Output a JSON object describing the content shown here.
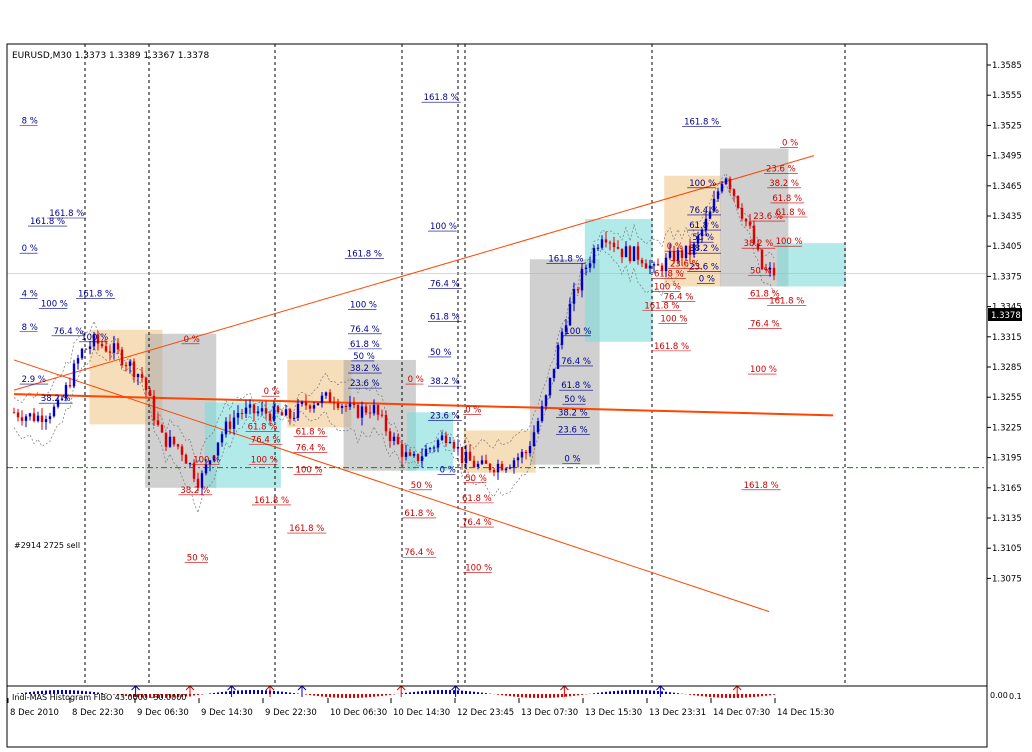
{
  "header": {
    "symbol_line": "EURUSD,M30  1.3373 1.3389 1.3367 1.3378"
  },
  "price_tag": "1.3378",
  "order_label": "#2914 2725 sell",
  "indicator_label": "Indi-MAS Histogram FIBO 43.0000 -30.0000",
  "indicator_axis_value": "0.00",
  "indicator_axis_value2": "0.1",
  "colors": {
    "bull": "#0000cc",
    "bear": "#e00000",
    "trend": "#ff4500",
    "fib_blue": "#00008b",
    "fib_red": "#cc0000",
    "box_gray": "#a9a9a9",
    "box_cyan": "#7fdcdc",
    "box_tan": "#f4d3a3"
  },
  "chart_data": {
    "type": "candlestick",
    "symbol": "EURUSD",
    "timeframe": "M30",
    "ohlc_last": {
      "open": 1.3373,
      "high": 1.3389,
      "low": 1.3367,
      "close": 1.3378
    },
    "ylim": [
      1.3045,
      1.36
    ],
    "y_ticks": [
      "1.3585",
      "1.3555",
      "1.3525",
      "1.3495",
      "1.3465",
      "1.3435",
      "1.3405",
      "1.3375",
      "1.3345",
      "1.3315",
      "1.3285",
      "1.3255",
      "1.3225",
      "1.3195",
      "1.3165",
      "1.3135",
      "1.3105",
      "1.3075"
    ],
    "x_ticks": [
      "8 Dec 2010",
      "8 Dec 22:30",
      "9 Dec 06:30",
      "9 Dec 14:30",
      "9 Dec 22:30",
      "10 Dec 06:30",
      "10 Dec 14:30",
      "12 Dec 23:45",
      "13 Dec 07:30",
      "13 Dec 15:30",
      "13 Dec 23:31",
      "14 Dec 07:30",
      "14 Dec 15:30"
    ],
    "session_separators": [
      1,
      4,
      7,
      10,
      11
    ],
    "order_level": 1.3185,
    "trendlines": [
      {
        "from": [
          0,
          1.3262
        ],
        "to": [
          12.5,
          1.3495
        ],
        "width": 1
      },
      {
        "from": [
          0,
          1.3258
        ],
        "to": [
          12.8,
          1.3237
        ],
        "width": 2
      },
      {
        "from": [
          0,
          1.3292
        ],
        "to": [
          11.8,
          1.3042
        ],
        "width": 1
      }
    ],
    "candles_anchor_close": [
      [
        0,
        1.324
      ],
      [
        0.35,
        1.3235
      ],
      [
        0.7,
        1.3245
      ],
      [
        1.05,
        1.33
      ],
      [
        1.25,
        1.331
      ],
      [
        1.6,
        1.33
      ],
      [
        2.0,
        1.3275
      ],
      [
        2.3,
        1.3215
      ],
      [
        2.6,
        1.3205
      ],
      [
        2.9,
        1.317
      ],
      [
        3.2,
        1.3215
      ],
      [
        3.5,
        1.324
      ],
      [
        3.9,
        1.324
      ],
      [
        4.3,
        1.3235
      ],
      [
        4.6,
        1.325
      ],
      [
        5.0,
        1.3255
      ],
      [
        5.3,
        1.324
      ],
      [
        5.6,
        1.3245
      ],
      [
        5.9,
        1.3215
      ],
      [
        6.2,
        1.319
      ],
      [
        6.5,
        1.3205
      ],
      [
        6.8,
        1.322
      ],
      [
        7.0,
        1.3195
      ],
      [
        7.3,
        1.3185
      ],
      [
        7.7,
        1.319
      ],
      [
        8.0,
        1.32
      ],
      [
        8.3,
        1.325
      ],
      [
        8.6,
        1.333
      ],
      [
        8.9,
        1.338
      ],
      [
        9.2,
        1.342
      ],
      [
        9.5,
        1.34
      ],
      [
        9.8,
        1.3395
      ],
      [
        10.0,
        1.338
      ],
      [
        10.3,
        1.3395
      ],
      [
        10.6,
        1.34
      ],
      [
        10.9,
        1.344
      ],
      [
        11.1,
        1.348
      ],
      [
        11.3,
        1.345
      ],
      [
        11.5,
        1.342
      ],
      [
        11.7,
        1.338
      ],
      [
        11.9,
        1.3378
      ]
    ],
    "zones": [
      {
        "color": "tan",
        "x": [
          1.18,
          2.32
        ],
        "y": [
          1.3228,
          1.3322
        ]
      },
      {
        "color": "gray",
        "x": [
          2.05,
          3.16
        ],
        "y": [
          1.3165,
          1.3318
        ]
      },
      {
        "color": "cyan",
        "x": [
          2.98,
          4.17
        ],
        "y": [
          1.3165,
          1.325
        ]
      },
      {
        "color": "tan",
        "x": [
          4.27,
          5.27
        ],
        "y": [
          1.3225,
          1.3292
        ]
      },
      {
        "color": "gray",
        "x": [
          5.15,
          6.28
        ],
        "y": [
          1.3182,
          1.3292
        ]
      },
      {
        "color": "cyan",
        "x": [
          6.14,
          6.86
        ],
        "y": [
          1.3182,
          1.324
        ]
      },
      {
        "color": "tan",
        "x": [
          7.03,
          8.15
        ],
        "y": [
          1.318,
          1.3222
        ]
      },
      {
        "color": "gray",
        "x": [
          8.06,
          9.15
        ],
        "y": [
          1.3188,
          1.3392
        ]
      },
      {
        "color": "cyan",
        "x": [
          8.92,
          9.98
        ],
        "y": [
          1.331,
          1.3432
        ]
      },
      {
        "color": "tan",
        "x": [
          10.16,
          11.04
        ],
        "y": [
          1.3365,
          1.3475
        ]
      },
      {
        "color": "gray",
        "x": [
          11.03,
          12.1
        ],
        "y": [
          1.3365,
          1.3502
        ]
      },
      {
        "color": "cyan",
        "x": [
          11.92,
          13.0
        ],
        "y": [
          1.3365,
          1.3408
        ]
      }
    ],
    "fib_labels": [
      {
        "text": "161.8 %",
        "x": 6.4,
        "y": 1.355,
        "c": "blue"
      },
      {
        "text": "8 %",
        "x": 0.12,
        "y": 1.3527,
        "c": "blue"
      },
      {
        "text": "161.8 %",
        "x": 10.47,
        "y": 1.3526,
        "c": "blue"
      },
      {
        "text": "161.8 %",
        "x": 0.55,
        "y": 1.3435,
        "c": "blue"
      },
      {
        "text": "161.8 %",
        "x": 0.25,
        "y": 1.3427,
        "c": "blue"
      },
      {
        "text": "100 %",
        "x": 6.5,
        "y": 1.3422,
        "c": "blue"
      },
      {
        "text": "0 %",
        "x": 0.12,
        "y": 1.34,
        "c": "blue"
      },
      {
        "text": "161.8 %",
        "x": 5.2,
        "y": 1.3395,
        "c": "blue"
      },
      {
        "text": "161.8 %",
        "x": 8.35,
        "y": 1.339,
        "c": "blue"
      },
      {
        "text": "76.4 %",
        "x": 6.5,
        "y": 1.3365,
        "c": "blue"
      },
      {
        "text": "4 %",
        "x": 0.12,
        "y": 1.3355,
        "c": "blue"
      },
      {
        "text": "161.8 %",
        "x": 1.0,
        "y": 1.3355,
        "c": "blue"
      },
      {
        "text": "100 %",
        "x": 0.42,
        "y": 1.3345,
        "c": "blue"
      },
      {
        "text": "100 %",
        "x": 5.25,
        "y": 1.3344,
        "c": "blue"
      },
      {
        "text": "61.8 %",
        "x": 6.5,
        "y": 1.3332,
        "c": "blue"
      },
      {
        "text": "8 %",
        "x": 0.12,
        "y": 1.3322,
        "c": "blue"
      },
      {
        "text": "76.4 %",
        "x": 0.62,
        "y": 1.3318,
        "c": "blue"
      },
      {
        "text": "76.4 %",
        "x": 5.25,
        "y": 1.332,
        "c": "blue"
      },
      {
        "text": "100 %",
        "x": 8.6,
        "y": 1.3318,
        "c": "blue"
      },
      {
        "text": "100 %",
        "x": 1.05,
        "y": 1.3312,
        "c": "blue"
      },
      {
        "text": "61.8 %",
        "x": 5.25,
        "y": 1.3305,
        "c": "blue"
      },
      {
        "text": "50 %",
        "x": 6.5,
        "y": 1.3297,
        "c": "blue"
      },
      {
        "text": "50 %",
        "x": 5.3,
        "y": 1.3293,
        "c": "blue"
      },
      {
        "text": "76.4 %",
        "x": 8.55,
        "y": 1.3288,
        "c": "blue"
      },
      {
        "text": "38.2 %",
        "x": 5.25,
        "y": 1.3281,
        "c": "blue"
      },
      {
        "text": "38.2 %",
        "x": 6.5,
        "y": 1.3268,
        "c": "blue"
      },
      {
        "text": "23.6 %",
        "x": 5.25,
        "y": 1.3266,
        "c": "blue"
      },
      {
        "text": "61.8 %",
        "x": 8.55,
        "y": 1.3264,
        "c": "blue"
      },
      {
        "text": "2.9 %",
        "x": 0.12,
        "y": 1.327,
        "c": "blue"
      },
      {
        "text": "38.2 %",
        "x": 0.42,
        "y": 1.3251,
        "c": "blue"
      },
      {
        "text": "50 %",
        "x": 8.6,
        "y": 1.325,
        "c": "blue"
      },
      {
        "text": "38.2 %",
        "x": 8.5,
        "y": 1.3237,
        "c": "blue"
      },
      {
        "text": "23.6 %",
        "x": 6.5,
        "y": 1.3234,
        "c": "blue"
      },
      {
        "text": "23.6 %",
        "x": 8.5,
        "y": 1.322,
        "c": "blue"
      },
      {
        "text": "0 %",
        "x": 8.6,
        "y": 1.3191,
        "c": "blue"
      },
      {
        "text": "0 %",
        "x": 6.65,
        "y": 1.318,
        "c": "blue"
      },
      {
        "text": "100 %",
        "x": 10.55,
        "y": 1.3465,
        "c": "blue"
      },
      {
        "text": "76.4 %",
        "x": 10.55,
        "y": 1.3438,
        "c": "blue"
      },
      {
        "text": "61.8 %",
        "x": 10.55,
        "y": 1.3423,
        "c": "blue"
      },
      {
        "text": "50 %",
        "x": 10.6,
        "y": 1.3411,
        "c": "blue"
      },
      {
        "text": "38.2 %",
        "x": 10.55,
        "y": 1.34,
        "c": "blue"
      },
      {
        "text": "23.6 %",
        "x": 10.55,
        "y": 1.3382,
        "c": "blue"
      },
      {
        "text": "0 %",
        "x": 10.7,
        "y": 1.337,
        "c": "blue"
      },
      {
        "text": "0 %",
        "x": 12.0,
        "y": 1.3505,
        "c": "red"
      },
      {
        "text": "23.6 %",
        "x": 11.75,
        "y": 1.3479,
        "c": "red"
      },
      {
        "text": "38.2 %",
        "x": 11.8,
        "y": 1.3465,
        "c": "red"
      },
      {
        "text": "61.8 %",
        "x": 11.85,
        "y": 1.345,
        "c": "red"
      },
      {
        "text": "23.6 %",
        "x": 11.55,
        "y": 1.3432,
        "c": "red"
      },
      {
        "text": "61.8 %",
        "x": 11.9,
        "y": 1.3436,
        "c": "red"
      },
      {
        "text": "100 %",
        "x": 11.9,
        "y": 1.3407,
        "c": "red"
      },
      {
        "text": "38.2 %",
        "x": 11.4,
        "y": 1.3405,
        "c": "red"
      },
      {
        "text": "50 %",
        "x": 11.5,
        "y": 1.3378,
        "c": "red"
      },
      {
        "text": "61.8 %",
        "x": 11.5,
        "y": 1.3355,
        "c": "red"
      },
      {
        "text": "161.8 %",
        "x": 11.8,
        "y": 1.3348,
        "c": "red"
      },
      {
        "text": "76.4 %",
        "x": 11.5,
        "y": 1.3325,
        "c": "red"
      },
      {
        "text": "100 %",
        "x": 11.5,
        "y": 1.328,
        "c": "red"
      },
      {
        "text": "161.8 %",
        "x": 10.0,
        "y": 1.3303,
        "c": "red"
      },
      {
        "text": "0 %",
        "x": 10.2,
        "y": 1.3402,
        "c": "red"
      },
      {
        "text": "23.6 %",
        "x": 10.25,
        "y": 1.3385,
        "c": "red"
      },
      {
        "text": "61.8 %",
        "x": 10.0,
        "y": 1.3375,
        "c": "red"
      },
      {
        "text": "100 %",
        "x": 10.0,
        "y": 1.3362,
        "c": "red"
      },
      {
        "text": "76.4 %",
        "x": 10.15,
        "y": 1.3352,
        "c": "red"
      },
      {
        "text": "161.8 %",
        "x": 9.85,
        "y": 1.3343,
        "c": "red"
      },
      {
        "text": "100 %",
        "x": 10.1,
        "y": 1.333,
        "c": "red"
      },
      {
        "text": "0 %",
        "x": 2.65,
        "y": 1.331,
        "c": "red"
      },
      {
        "text": "0 %",
        "x": 3.9,
        "y": 1.3258,
        "c": "red"
      },
      {
        "text": "0 %",
        "x": 6.15,
        "y": 1.327,
        "c": "red"
      },
      {
        "text": "0 %",
        "x": 7.05,
        "y": 1.324,
        "c": "red"
      },
      {
        "text": "100 %",
        "x": 2.8,
        "y": 1.319,
        "c": "red"
      },
      {
        "text": "100 %",
        "x": 3.7,
        "y": 1.319,
        "c": "red"
      },
      {
        "text": "100 %",
        "x": 4.4,
        "y": 1.318,
        "c": "red"
      },
      {
        "text": "76.4 %",
        "x": 3.7,
        "y": 1.321,
        "c": "red"
      },
      {
        "text": "61.8 %",
        "x": 3.65,
        "y": 1.3223,
        "c": "red"
      },
      {
        "text": "76.4 %",
        "x": 4.4,
        "y": 1.3202,
        "c": "red"
      },
      {
        "text": "61.8 %",
        "x": 4.4,
        "y": 1.3218,
        "c": "red"
      },
      {
        "text": "38.2 %",
        "x": 2.6,
        "y": 1.316,
        "c": "red"
      },
      {
        "text": "161.8 %",
        "x": 3.75,
        "y": 1.315,
        "c": "red"
      },
      {
        "text": "161.8 %",
        "x": 4.3,
        "y": 1.3122,
        "c": "red"
      },
      {
        "text": "50 %",
        "x": 2.7,
        "y": 1.3093,
        "c": "red"
      },
      {
        "text": "50 %",
        "x": 6.2,
        "y": 1.3165,
        "c": "red"
      },
      {
        "text": "61.8 %",
        "x": 6.1,
        "y": 1.3137,
        "c": "red"
      },
      {
        "text": "76.4 %",
        "x": 6.1,
        "y": 1.3098,
        "c": "red"
      },
      {
        "text": "50 %",
        "x": 7.05,
        "y": 1.3172,
        "c": "red"
      },
      {
        "text": "61.8 %",
        "x": 7.0,
        "y": 1.3152,
        "c": "red"
      },
      {
        "text": "76.4 %",
        "x": 7.0,
        "y": 1.3128,
        "c": "red"
      },
      {
        "text": "100 %",
        "x": 7.05,
        "y": 1.3083,
        "c": "red"
      },
      {
        "text": "161.8 %",
        "x": 11.4,
        "y": 1.3165,
        "c": "red"
      }
    ]
  }
}
